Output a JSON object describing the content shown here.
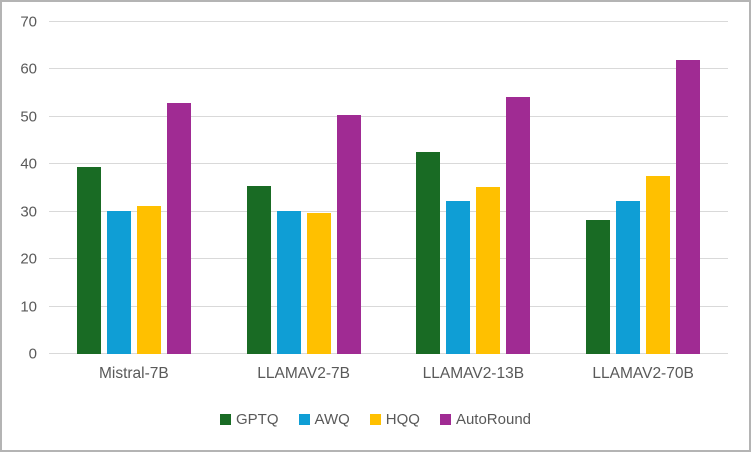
{
  "chart": {
    "background": "#ffffff",
    "border_color": "#b4b4b4",
    "grid_color": "#d9d9d9",
    "axis_text_color": "#595959"
  },
  "chart_data": {
    "type": "bar",
    "title": "",
    "xlabel": "",
    "ylabel": "",
    "categories": [
      "Mistral-7B",
      "LLAMAV2-7B",
      "LLAMAV2-13B",
      "LLAMAV2-70B"
    ],
    "series": [
      {
        "name": "GPTQ",
        "color": "#196B24",
        "values": [
          39.5,
          35.4,
          42.5,
          28.3
        ]
      },
      {
        "name": "AWQ",
        "color": "#0F9ED5",
        "values": [
          30.1,
          30.1,
          32.2,
          32.2
        ]
      },
      {
        "name": "HQQ",
        "color": "#FFC000",
        "values": [
          31.3,
          29.8,
          35.3,
          37.5
        ]
      },
      {
        "name": "AutoRound",
        "color": "#A02B93",
        "values": [
          52.9,
          50.4,
          54.2,
          62.0
        ]
      }
    ],
    "ylim": [
      0,
      70
    ],
    "yticks": [
      0,
      10,
      20,
      30,
      40,
      50,
      60,
      70
    ],
    "grid": true,
    "legend_position": "bottom"
  }
}
